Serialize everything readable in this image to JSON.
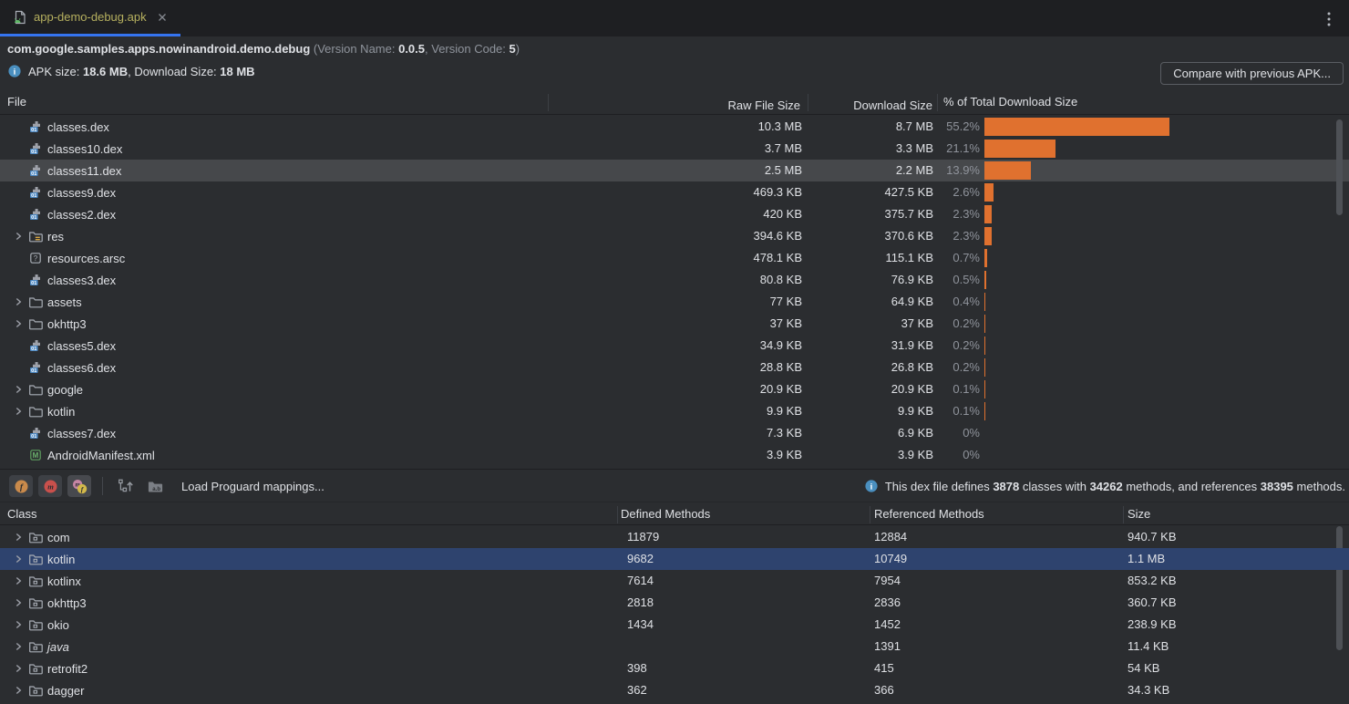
{
  "tab": {
    "label": "app-demo-debug.apk"
  },
  "header": {
    "package": "com.google.samples.apps.nowinandroid.demo.debug",
    "ver_open": " (Version Name: ",
    "ver_name": "0.0.5",
    "ver_mid": ", Version Code: ",
    "ver_code": "5",
    "ver_close": ")",
    "apk_label": "APK size: ",
    "apk_size": "18.6 MB",
    "dl_label": ", Download Size: ",
    "dl_size": "18 MB",
    "compare_button": "Compare with previous APK..."
  },
  "files_table": {
    "columns": {
      "file": "File",
      "raw": "Raw File Size",
      "download": "Download Size",
      "pct": "% of Total Download Size"
    },
    "rows": [
      {
        "name": "classes.dex",
        "icon": "dex",
        "expandable": false,
        "selected": false,
        "raw": "10.3 MB",
        "download": "8.7 MB",
        "pct": "55.2%",
        "pct_num": 55.2
      },
      {
        "name": "classes10.dex",
        "icon": "dex",
        "expandable": false,
        "selected": false,
        "raw": "3.7 MB",
        "download": "3.3 MB",
        "pct": "21.1%",
        "pct_num": 21.1
      },
      {
        "name": "classes11.dex",
        "icon": "dex",
        "expandable": false,
        "selected": true,
        "raw": "2.5 MB",
        "download": "2.2 MB",
        "pct": "13.9%",
        "pct_num": 13.9
      },
      {
        "name": "classes9.dex",
        "icon": "dex",
        "expandable": false,
        "selected": false,
        "raw": "469.3 KB",
        "download": "427.5 KB",
        "pct": "2.6%",
        "pct_num": 2.6
      },
      {
        "name": "classes2.dex",
        "icon": "dex",
        "expandable": false,
        "selected": false,
        "raw": "420 KB",
        "download": "375.7 KB",
        "pct": "2.3%",
        "pct_num": 2.3
      },
      {
        "name": "res",
        "icon": "folder-res",
        "expandable": true,
        "selected": false,
        "raw": "394.6 KB",
        "download": "370.6 KB",
        "pct": "2.3%",
        "pct_num": 2.3
      },
      {
        "name": "resources.arsc",
        "icon": "arsc",
        "expandable": false,
        "selected": false,
        "raw": "478.1 KB",
        "download": "115.1 KB",
        "pct": "0.7%",
        "pct_num": 0.7
      },
      {
        "name": "classes3.dex",
        "icon": "dex",
        "expandable": false,
        "selected": false,
        "raw": "80.8 KB",
        "download": "76.9 KB",
        "pct": "0.5%",
        "pct_num": 0.5
      },
      {
        "name": "assets",
        "icon": "folder",
        "expandable": true,
        "selected": false,
        "raw": "77 KB",
        "download": "64.9 KB",
        "pct": "0.4%",
        "pct_num": 0.4
      },
      {
        "name": "okhttp3",
        "icon": "folder",
        "expandable": true,
        "selected": false,
        "raw": "37 KB",
        "download": "37 KB",
        "pct": "0.2%",
        "pct_num": 0.2
      },
      {
        "name": "classes5.dex",
        "icon": "dex",
        "expandable": false,
        "selected": false,
        "raw": "34.9 KB",
        "download": "31.9 KB",
        "pct": "0.2%",
        "pct_num": 0.2
      },
      {
        "name": "classes6.dex",
        "icon": "dex",
        "expandable": false,
        "selected": false,
        "raw": "28.8 KB",
        "download": "26.8 KB",
        "pct": "0.2%",
        "pct_num": 0.2
      },
      {
        "name": "google",
        "icon": "folder",
        "expandable": true,
        "selected": false,
        "raw": "20.9 KB",
        "download": "20.9 KB",
        "pct": "0.1%",
        "pct_num": 0.1
      },
      {
        "name": "kotlin",
        "icon": "folder",
        "expandable": true,
        "selected": false,
        "raw": "9.9 KB",
        "download": "9.9 KB",
        "pct": "0.1%",
        "pct_num": 0.1
      },
      {
        "name": "classes7.dex",
        "icon": "dex",
        "expandable": false,
        "selected": false,
        "raw": "7.3 KB",
        "download": "6.9 KB",
        "pct": "0%",
        "pct_num": 0
      },
      {
        "name": "AndroidManifest.xml",
        "icon": "manifest",
        "expandable": false,
        "selected": false,
        "raw": "3.9 KB",
        "download": "3.9 KB",
        "pct": "0%",
        "pct_num": 0
      }
    ]
  },
  "dex_toolbar": {
    "load_mappings": "Load Proguard mappings...",
    "info": {
      "s1": "This dex file defines ",
      "n1": "3878",
      "s2": " classes with ",
      "n2": "34262",
      "s3": " methods, and references ",
      "n3": "38395",
      "s4": " methods."
    }
  },
  "classes_table": {
    "columns": {
      "class": "Class",
      "defined": "Defined Methods",
      "referenced": "Referenced Methods",
      "size": "Size"
    },
    "rows": [
      {
        "name": "com",
        "defined": "11879",
        "referenced": "12884",
        "size": "940.7 KB",
        "selected": false,
        "italic": false
      },
      {
        "name": "kotlin",
        "defined": "9682",
        "referenced": "10749",
        "size": "1.1 MB",
        "selected": true,
        "italic": false
      },
      {
        "name": "kotlinx",
        "defined": "7614",
        "referenced": "7954",
        "size": "853.2 KB",
        "selected": false,
        "italic": false
      },
      {
        "name": "okhttp3",
        "defined": "2818",
        "referenced": "2836",
        "size": "360.7 KB",
        "selected": false,
        "italic": false
      },
      {
        "name": "okio",
        "defined": "1434",
        "referenced": "1452",
        "size": "238.9 KB",
        "selected": false,
        "italic": false
      },
      {
        "name": "java",
        "defined": "",
        "referenced": "1391",
        "size": "11.4 KB",
        "selected": false,
        "italic": true
      },
      {
        "name": "retrofit2",
        "defined": "398",
        "referenced": "415",
        "size": "54 KB",
        "selected": false,
        "italic": false
      },
      {
        "name": "dagger",
        "defined": "362",
        "referenced": "366",
        "size": "34.3 KB",
        "selected": false,
        "italic": false
      }
    ]
  },
  "colors": {
    "bar_orange": "#e0712f",
    "selection_blue": "#2e436e",
    "selection_gray": "#46484b",
    "tab_accent": "#3574f0",
    "info_blue": "#4a8fbf"
  }
}
